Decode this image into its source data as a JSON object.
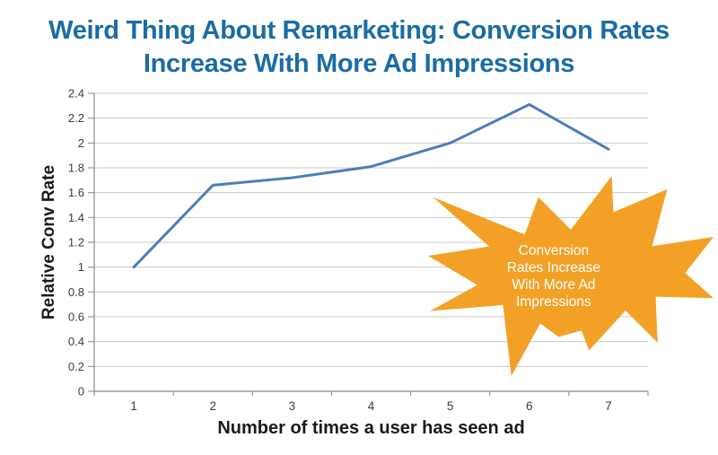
{
  "title": {
    "line1": "Weird Thing About Remarketing: Conversion Rates",
    "line2": "Increase With More Ad Impressions",
    "full": "Weird Thing About Remarketing: Conversion Rates Increase With More Ad Impressions"
  },
  "colors": {
    "title_text": "#1A6CA4",
    "grid": "#C9C9C9",
    "axis": "#8A8A8A",
    "tick_text": "#3D3D3D",
    "axis_title_text": "#1A1A1A"
  },
  "chart_data": {
    "type": "line",
    "title": "Weird Thing About Remarketing: Conversion Rates Increase With More Ad Impressions",
    "x": [
      1,
      2,
      3,
      4,
      5,
      6,
      7
    ],
    "series": [
      {
        "name": "Relative Conv Rate",
        "values": [
          1.0,
          1.66,
          1.72,
          1.81,
          2.0,
          2.31,
          1.95
        ]
      }
    ],
    "xlabel": "Number of times a user has seen ad",
    "ylabel": "Relative Conv Rate",
    "ylim": [
      0,
      2.4
    ],
    "ytick_step": 0.2,
    "x_tick_labels": [
      "1",
      "2",
      "3",
      "4",
      "5",
      "6",
      "7"
    ],
    "y_tick_labels": [
      "0",
      "0.2",
      "0.4",
      "0.6",
      "0.8",
      "1",
      "1.2",
      "1.4",
      "1.6",
      "1.8",
      "2",
      "2.2",
      "2.4"
    ],
    "grid": true,
    "legend": false,
    "line_color": "#4A7EBC",
    "annotation": "Conversion Rates Increase With More Ad Impressions"
  },
  "callout": {
    "lines": [
      "Conversion",
      "Rates Increase",
      "With More Ad",
      "Impressions"
    ],
    "fill_color": "#F3A126",
    "text_color": "#FFFFFF"
  }
}
